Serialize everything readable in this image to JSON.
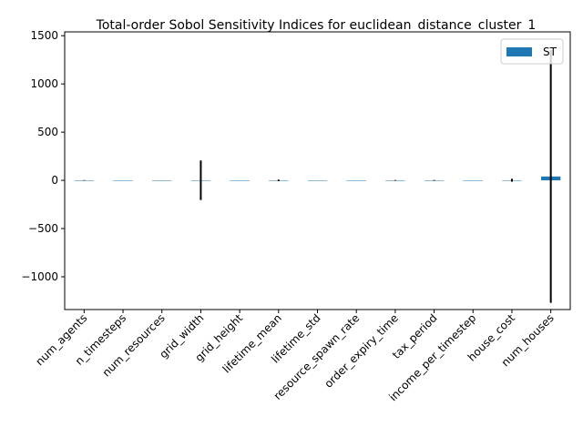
{
  "chart_data": {
    "type": "bar",
    "title": "Total-order Sobol Sensitivity Indices for euclidean_distance_cluster_1",
    "xlabel": "",
    "ylabel": "",
    "ylim": [
      -1340,
      1540
    ],
    "yticks": [
      -1000,
      -500,
      0,
      500,
      1000,
      1500
    ],
    "legend": {
      "position": "top-right",
      "entries": [
        "ST"
      ]
    },
    "grid": false,
    "colors": {
      "bar": "#1f77b4",
      "errorbar": "#000000"
    },
    "categories": [
      "num_agents",
      "n_timesteps",
      "num_resources",
      "grid_width",
      "grid_height",
      "lifetime_mean",
      "lifetime_std",
      "resource_spawn_rate",
      "order_expiry_time",
      "tax_period",
      "income_per_timestep",
      "house_cost",
      "num_houses"
    ],
    "series": [
      {
        "name": "ST",
        "values": [
          0,
          0,
          0,
          1,
          0,
          0,
          0,
          0,
          0,
          0,
          0,
          1,
          40
        ],
        "errors": [
          3,
          0,
          0,
          205,
          0,
          8,
          0,
          0,
          4,
          4,
          0,
          15,
          1310
        ]
      }
    ]
  }
}
